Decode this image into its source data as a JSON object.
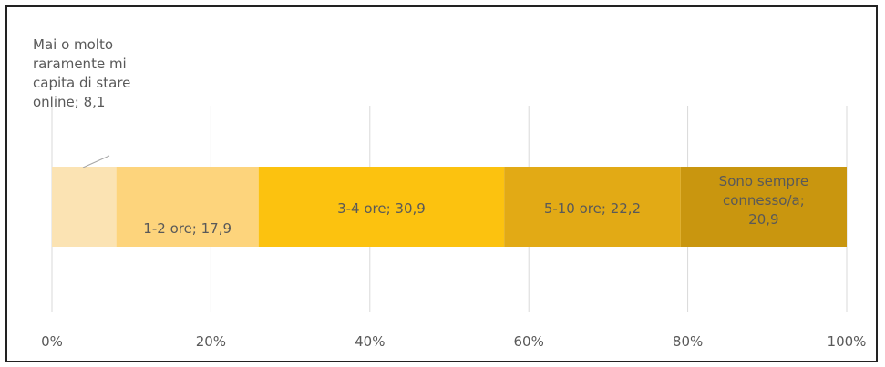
{
  "chart_data": {
    "type": "bar",
    "orientation": "horizontal",
    "stacked": true,
    "xlim": [
      0,
      100
    ],
    "x_ticks": [
      "0%",
      "20%",
      "40%",
      "60%",
      "80%",
      "100%"
    ],
    "grid": "vertical",
    "series": [
      {
        "name": "Mai o molto raramente mi capita di stare online",
        "value": 8.1,
        "color": "#fbe3b3",
        "label_lines": [
          "Mai o molto",
          "raramente mi",
          "capita di stare",
          "online; 8,1"
        ]
      },
      {
        "name": "1-2 ore",
        "value": 17.9,
        "color": "#fdd47c",
        "label_lines": [
          "1-2 ore; 17,9"
        ]
      },
      {
        "name": "3-4 ore",
        "value": 30.9,
        "color": "#fcc20f",
        "label_lines": [
          "3-4 ore; 30,9"
        ]
      },
      {
        "name": "5-10 ore",
        "value": 22.2,
        "color": "#e2aa15",
        "label_lines": [
          "5-10 ore; 22,2"
        ]
      },
      {
        "name": "Sono sempre connesso/a",
        "value": 20.9,
        "color": "#c9960f",
        "label_lines": [
          "Sono sempre",
          "connesso/a;",
          "20,9"
        ]
      }
    ]
  }
}
